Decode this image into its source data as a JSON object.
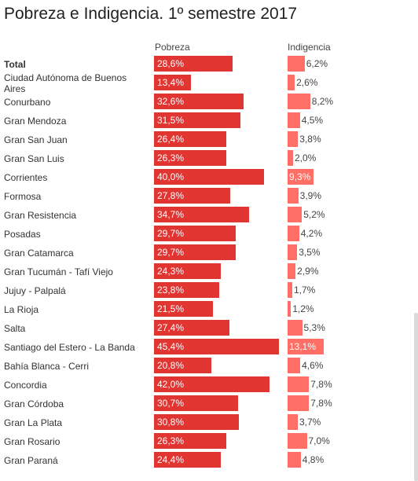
{
  "chart_data": {
    "type": "bar",
    "title": "Pobreza e Indigencia. 1º semestre 2017",
    "series": [
      {
        "name": "Pobreza",
        "values": [
          28.6,
          13.4,
          32.6,
          31.5,
          26.4,
          26.3,
          40.0,
          27.8,
          34.7,
          29.7,
          29.7,
          24.3,
          23.8,
          21.5,
          27.4,
          45.4,
          20.8,
          42.0,
          30.7,
          30.8,
          26.3,
          24.4
        ]
      },
      {
        "name": "Indigencia",
        "values": [
          6.2,
          2.6,
          8.2,
          4.5,
          3.8,
          2.0,
          9.3,
          3.9,
          5.2,
          4.2,
          3.5,
          2.9,
          1.7,
          1.2,
          5.3,
          13.1,
          4.6,
          7.8,
          7.8,
          3.7,
          7.0,
          4.8
        ]
      }
    ],
    "value_labels": {
      "Pobreza": [
        "28,6%",
        "13,4%",
        "32,6%",
        "31,5%",
        "26,4%",
        "26,3%",
        "40,0%",
        "27,8%",
        "34,7%",
        "29,7%",
        "29,7%",
        "24,3%",
        "23,8%",
        "21,5%",
        "27,4%",
        "45,4%",
        "20,8%",
        "42,0%",
        "30,7%",
        "30,8%",
        "26,3%",
        "24,4%"
      ],
      "Indigencia": [
        "6,2%",
        "2,6%",
        "8,2%",
        "4,5%",
        "3,8%",
        "2,0%",
        "9,3%",
        "3,9%",
        "5,2%",
        "4,2%",
        "3,5%",
        "2,9%",
        "1,7%",
        "1,2%",
        "5,3%",
        "13,1%",
        "4,6%",
        "7,8%",
        "7,8%",
        "3,7%",
        "7,0%",
        "4,8%"
      ]
    },
    "categories": [
      "Total",
      "Ciudad Autónoma de Buenos Aires",
      "Conurbano",
      "Gran Mendoza",
      "Gran San Juan",
      "Gran San Luis",
      "Corrientes",
      "Formosa",
      "Gran Resistencia",
      "Posadas",
      "Gran Catamarca",
      "Gran Tucumán - Tafí Viejo",
      "Jujuy - Palpalá",
      "La Rioja",
      "Salta",
      "Santiago del Estero - La Banda",
      "Bahía Blanca - Cerri",
      "Concordia",
      "Gran Córdoba",
      "Gran La Plata",
      "Gran Rosario",
      "Gran Paraná"
    ],
    "bold_categories": [
      "Total"
    ],
    "colors": {
      "pobreza": "#e03531",
      "indigencia": "#ff6f66"
    }
  }
}
